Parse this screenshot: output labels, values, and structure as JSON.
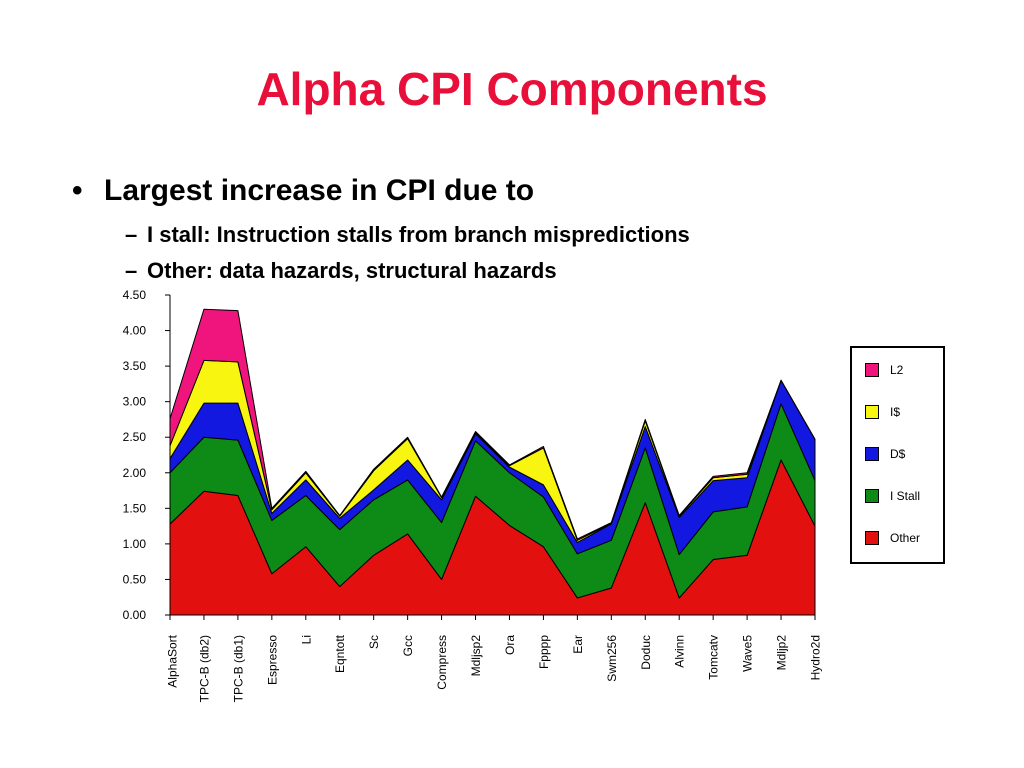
{
  "slide": {
    "title": "Alpha CPI Components",
    "bullet": "Largest increase in CPI due to",
    "bullet_marker": "•",
    "sub_marker": "–",
    "subbullets": [
      "I stall: Instruction stalls from branch mispredictions",
      "Other: data hazards, structural hazards"
    ]
  },
  "chart_data": {
    "type": "area",
    "stacked": true,
    "title": "",
    "xlabel": "",
    "ylabel": "",
    "ylim": [
      0,
      4.5
    ],
    "yticks": [
      "0.00",
      "0.50",
      "1.00",
      "1.50",
      "2.00",
      "2.50",
      "3.00",
      "3.50",
      "4.00",
      "4.50"
    ],
    "grid": false,
    "legend_position": "right",
    "categories": [
      "AlphaSort",
      "TPC-B (db2)",
      "TPC-B (db1)",
      "Espresso",
      "Li",
      "Eqntott",
      "Sc",
      "Gcc",
      "Compress",
      "Mdljsp2",
      "Ora",
      "Fpppp",
      "Ear",
      "Swm256",
      "Doduc",
      "Alvinn",
      "Tomcatv",
      "Wave5",
      "Mdljp2",
      "Hydro2d"
    ],
    "series": [
      {
        "name": "Other",
        "color": "#e31010",
        "values": [
          1.28,
          1.74,
          1.68,
          0.58,
          0.96,
          0.4,
          0.84,
          1.14,
          0.5,
          1.67,
          1.26,
          0.96,
          0.24,
          0.38,
          1.58,
          0.24,
          0.78,
          0.84,
          2.18,
          1.25
        ]
      },
      {
        "name": "I Stall",
        "color": "#0e8a16",
        "values": [
          0.72,
          0.76,
          0.78,
          0.75,
          0.72,
          0.8,
          0.78,
          0.76,
          0.8,
          0.78,
          0.74,
          0.7,
          0.62,
          0.67,
          0.77,
          0.61,
          0.67,
          0.68,
          0.79,
          0.64
        ]
      },
      {
        "name": "D$",
        "color": "#1318e0",
        "values": [
          0.2,
          0.48,
          0.52,
          0.1,
          0.22,
          0.16,
          0.14,
          0.28,
          0.32,
          0.1,
          0.08,
          0.17,
          0.16,
          0.23,
          0.3,
          0.52,
          0.44,
          0.41,
          0.33,
          0.58
        ]
      },
      {
        "name": "I$",
        "color": "#f8f510",
        "values": [
          0.18,
          0.6,
          0.58,
          0.05,
          0.1,
          0.03,
          0.27,
          0.3,
          0.03,
          0.02,
          0.02,
          0.52,
          0.03,
          0.01,
          0.08,
          0.02,
          0.04,
          0.05,
          0.0,
          0.0
        ]
      },
      {
        "name": "L2",
        "color": "#f0157c",
        "values": [
          0.38,
          0.72,
          0.72,
          0.02,
          0.02,
          0.01,
          0.02,
          0.02,
          0.01,
          0.01,
          0.01,
          0.02,
          0.02,
          0.01,
          0.02,
          0.01,
          0.02,
          0.02,
          0.0,
          0.0
        ]
      }
    ],
    "legend_order": [
      "L2",
      "I$",
      "D$",
      "I Stall",
      "Other"
    ]
  }
}
